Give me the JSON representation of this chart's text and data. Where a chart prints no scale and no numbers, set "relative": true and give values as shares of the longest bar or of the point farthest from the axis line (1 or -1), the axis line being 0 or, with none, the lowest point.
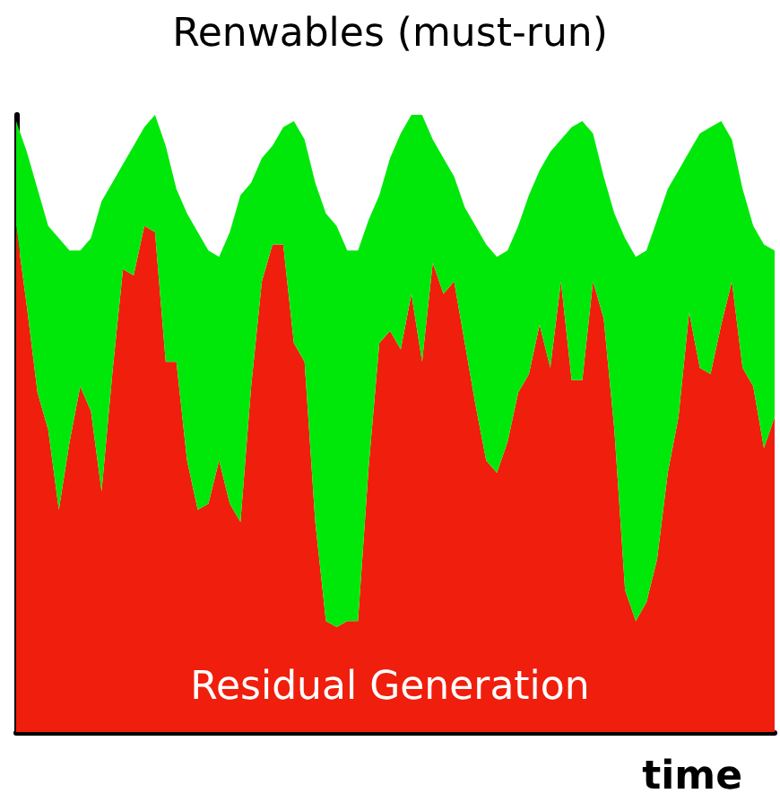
{
  "chart_data": {
    "type": "area",
    "stacked": true,
    "relative": true,
    "xlabel": "time",
    "categories": [
      null,
      null,
      null,
      null,
      null,
      null,
      null,
      null,
      null,
      null,
      null,
      null,
      null,
      null,
      null,
      null,
      null,
      null,
      null,
      null,
      null,
      null,
      null,
      null,
      null,
      null,
      null,
      null,
      null,
      null,
      null,
      null,
      null,
      null,
      null,
      null,
      null,
      null,
      null,
      null,
      null,
      null,
      null,
      null,
      null,
      null,
      null,
      null,
      null,
      null,
      null,
      null,
      null,
      null,
      null,
      null,
      null,
      null,
      null,
      null,
      null,
      null,
      null,
      null,
      null,
      null,
      null,
      null,
      null,
      null,
      null,
      null
    ],
    "series": [
      {
        "name": "Residual Generation",
        "color": "#f01e0c",
        "values": [
          0.82,
          0.69,
          0.55,
          0.49,
          0.36,
          0.47,
          0.56,
          0.52,
          0.39,
          0.58,
          0.75,
          0.74,
          0.82,
          0.81,
          0.6,
          0.6,
          0.44,
          0.36,
          0.37,
          0.44,
          0.37,
          0.34,
          0.56,
          0.73,
          0.79,
          0.79,
          0.63,
          0.6,
          0.34,
          0.18,
          0.17,
          0.18,
          0.18,
          0.43,
          0.63,
          0.65,
          0.62,
          0.71,
          0.6,
          0.76,
          0.71,
          0.73,
          0.63,
          0.53,
          0.44,
          0.42,
          0.47,
          0.55,
          0.58,
          0.66,
          0.59,
          0.73,
          0.57,
          0.57,
          0.73,
          0.67,
          0.49,
          0.23,
          0.18,
          0.21,
          0.28,
          0.42,
          0.51,
          0.68,
          0.59,
          0.58,
          0.66,
          0.73,
          0.59,
          0.56,
          0.46,
          0.51
        ]
      },
      {
        "name": "Renwables (must-run)",
        "color": "#00e80a",
        "values": [
          0.17,
          0.25,
          0.33,
          0.33,
          0.44,
          0.31,
          0.22,
          0.28,
          0.47,
          0.31,
          0.17,
          0.21,
          0.16,
          0.19,
          0.35,
          0.28,
          0.4,
          0.45,
          0.41,
          0.33,
          0.44,
          0.53,
          0.33,
          0.2,
          0.16,
          0.19,
          0.36,
          0.36,
          0.55,
          0.66,
          0.65,
          0.6,
          0.6,
          0.4,
          0.24,
          0.28,
          0.35,
          0.29,
          0.4,
          0.2,
          0.22,
          0.17,
          0.22,
          0.29,
          0.35,
          0.35,
          0.31,
          0.27,
          0.29,
          0.25,
          0.35,
          0.23,
          0.41,
          0.42,
          0.24,
          0.23,
          0.35,
          0.57,
          0.59,
          0.57,
          0.55,
          0.46,
          0.4,
          0.26,
          0.38,
          0.4,
          0.33,
          0.23,
          0.29,
          0.26,
          0.33,
          0.27
        ]
      }
    ]
  }
}
